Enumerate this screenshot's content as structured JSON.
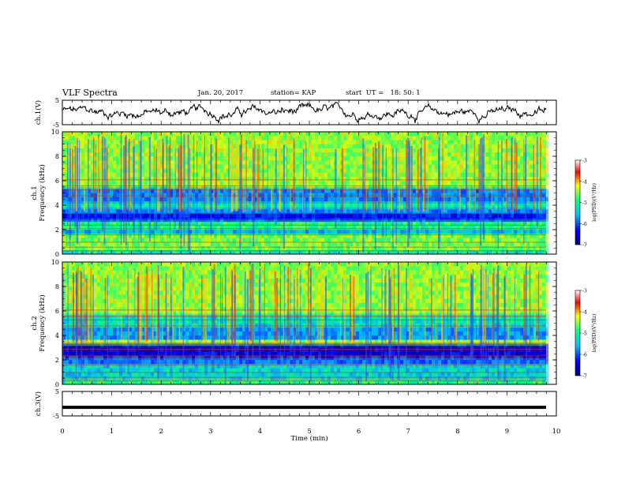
{
  "header": {
    "title": "VLF Spectra",
    "date": "Jan. 20, 2017",
    "station": "station= KAP",
    "start": "start  UT =   18: 50: 1"
  },
  "chart_data": [
    {
      "type": "line",
      "name": "ch1-waveform",
      "ylabel": "ch.1(V)",
      "ylim": [
        -5,
        5
      ],
      "yticks": [
        "5",
        "-5"
      ],
      "xlim": [
        0,
        10
      ]
    },
    {
      "type": "heatmap",
      "name": "ch1-spectrogram",
      "ylabel": "ch.1\nFrequency (kHz)",
      "ylabel_lines": [
        "ch.1",
        "Frequency (kHz)"
      ],
      "ylim": [
        0,
        10
      ],
      "yticks": [
        "0",
        "2",
        "4",
        "6",
        "8",
        "10"
      ],
      "colorbar": {
        "label": "log(PSD)(V²/Hz)",
        "range": [
          -7,
          -3
        ],
        "ticks": [
          "-3",
          "-4",
          "-5",
          "-6",
          "-7"
        ]
      }
    },
    {
      "type": "heatmap",
      "name": "ch2-spectrogram",
      "ylabel": "ch.2\nFrequency (kHz)",
      "ylabel_lines": [
        "ch.2",
        "Frequency (kHz)"
      ],
      "ylim": [
        0,
        10
      ],
      "yticks": [
        "0",
        "2",
        "4",
        "6",
        "8",
        "10"
      ],
      "colorbar": {
        "label": "log(PSD)(V²/Hz)",
        "range": [
          -7,
          -3
        ],
        "ticks": [
          "-3",
          "-4",
          "-5",
          "-6",
          "-7"
        ]
      }
    },
    {
      "type": "line",
      "name": "ch3-waveform",
      "ylabel": "ch.3(V)",
      "ylim": [
        -5,
        5
      ],
      "yticks": [
        "5",
        "-5"
      ],
      "level": -1.5,
      "xlabel": "Time (min)",
      "xlim": [
        0,
        10
      ],
      "xticks": [
        "0",
        "1",
        "2",
        "3",
        "4",
        "5",
        "6",
        "7",
        "8",
        "9",
        "10"
      ]
    }
  ],
  "colors": {
    "colormap": [
      "#00007a",
      "#0000ff",
      "#00bfff",
      "#00ff80",
      "#ffff00",
      "#ff0000",
      "#8b0000"
    ],
    "line": "#000000"
  }
}
